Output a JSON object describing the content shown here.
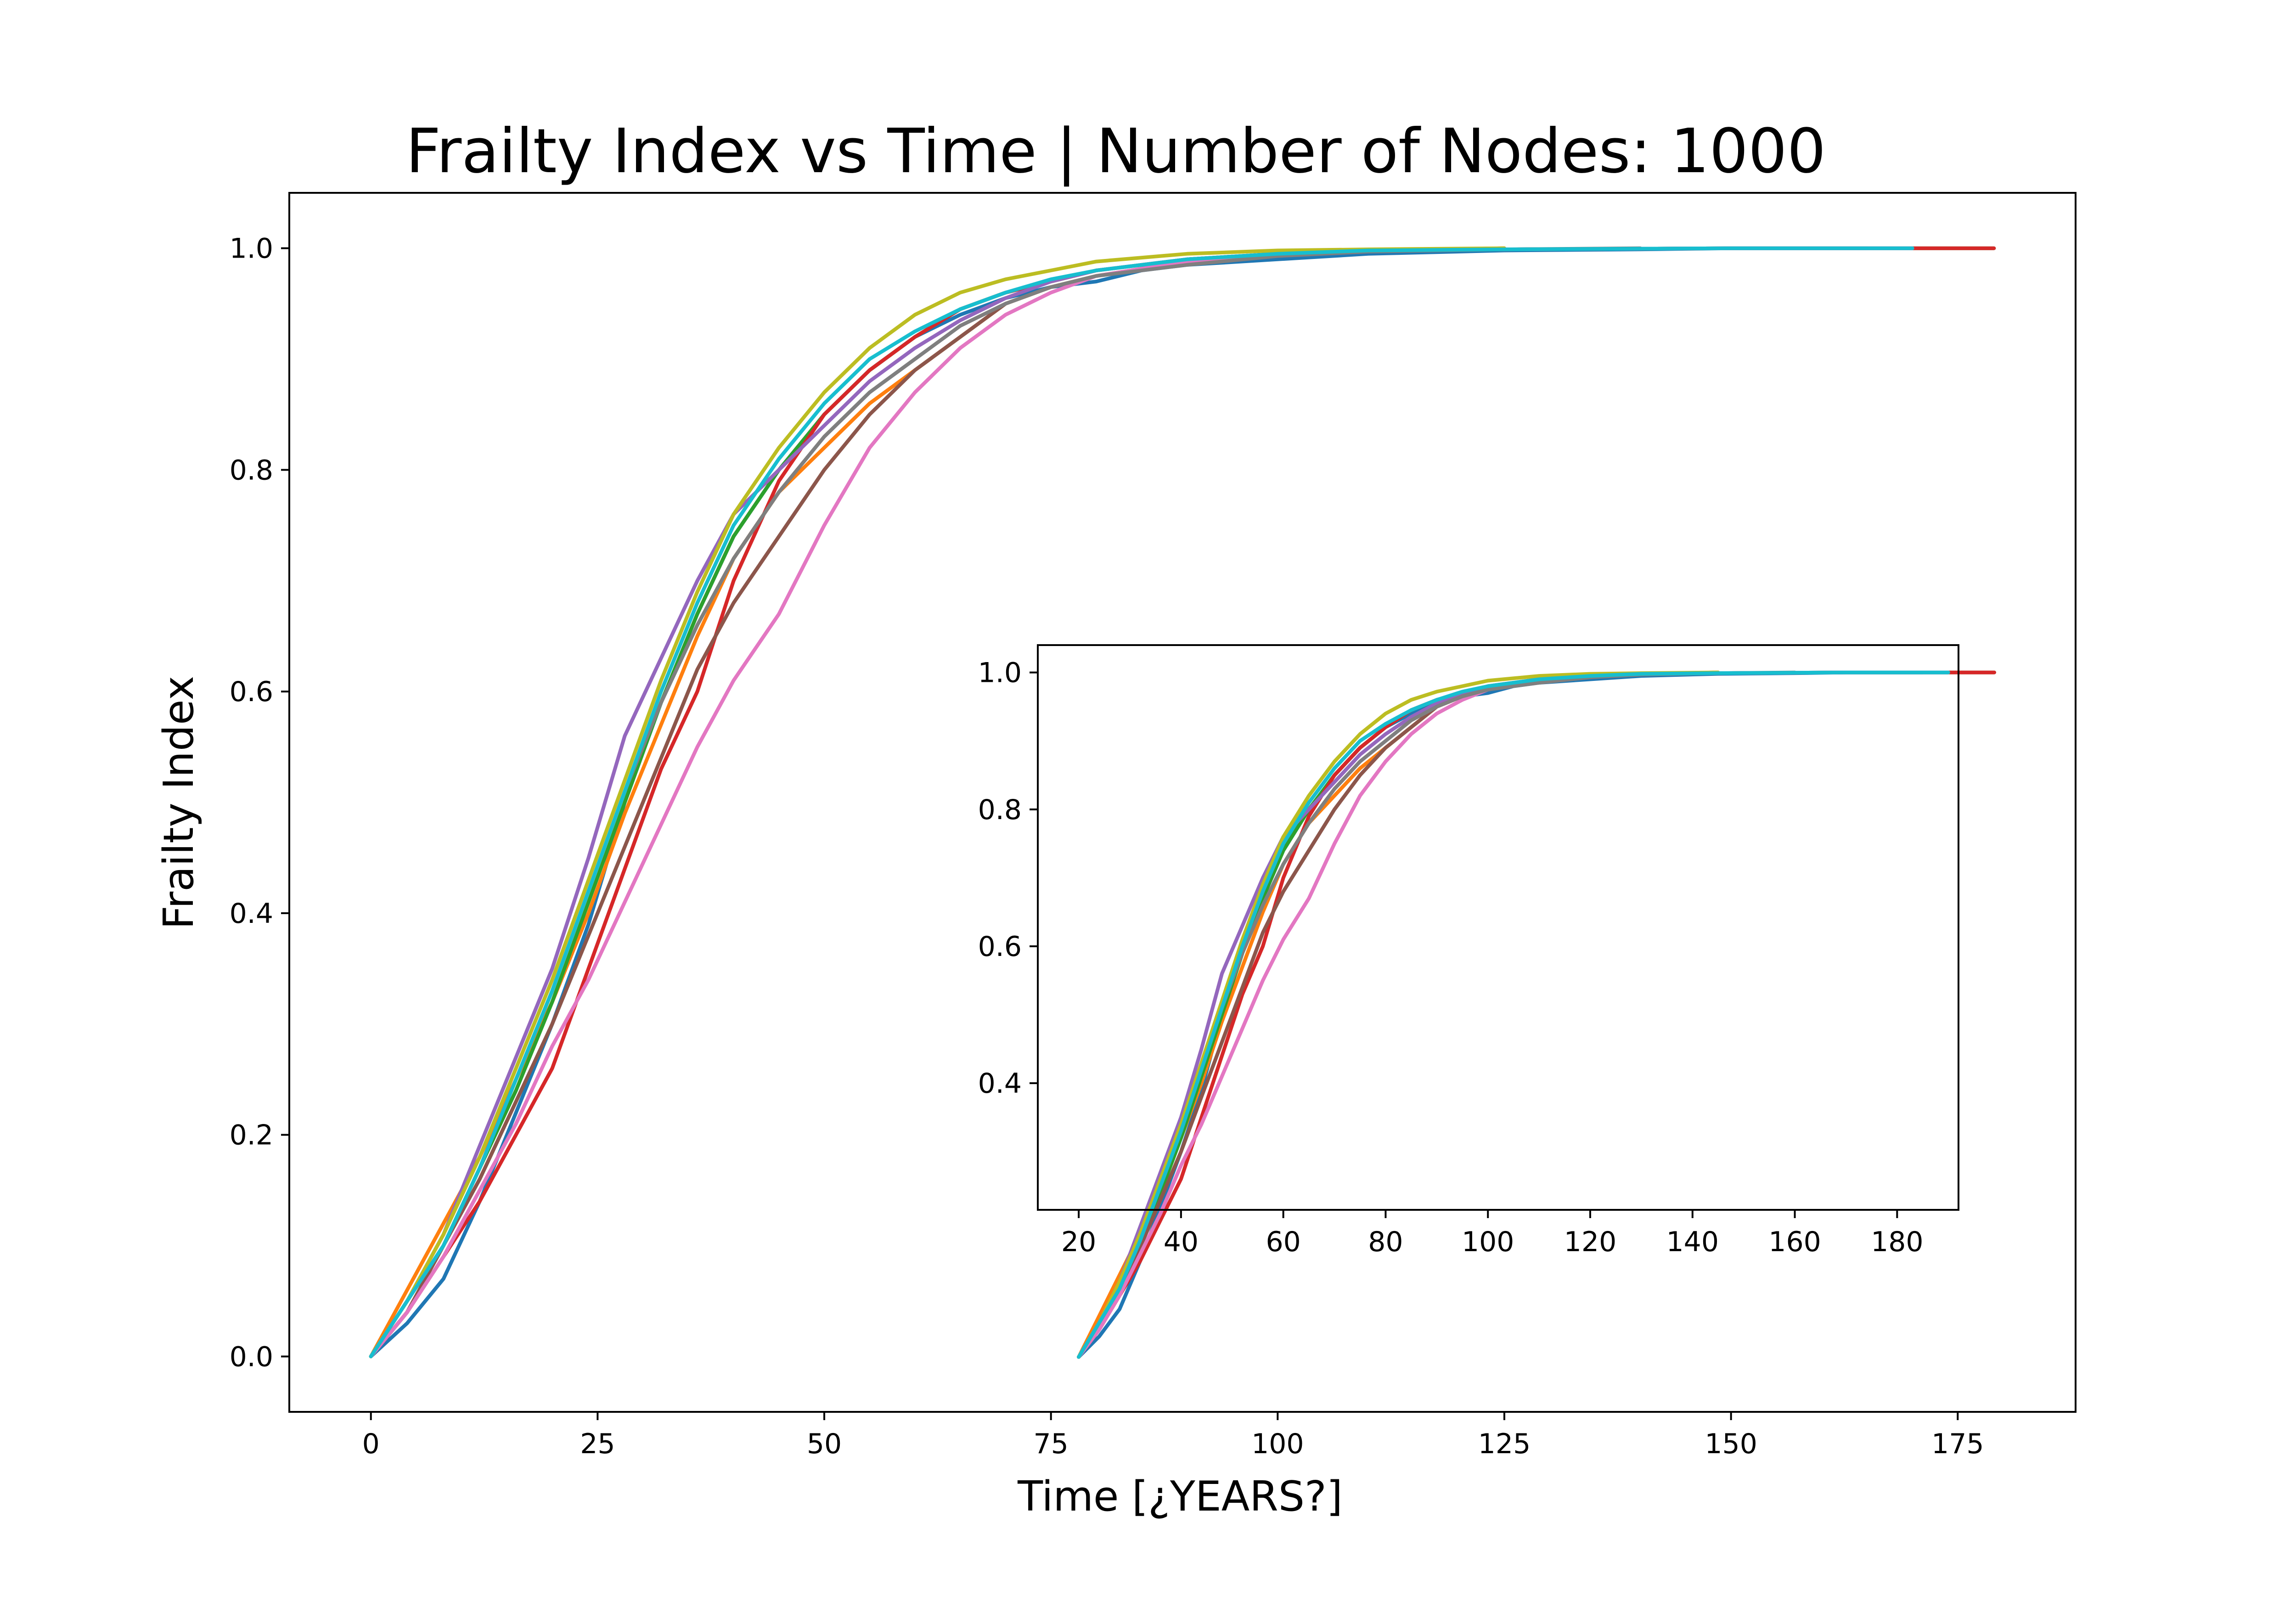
{
  "chart_data": {
    "type": "line",
    "title": "Frailty Index vs Time | Number of Nodes: 1000",
    "xlabel": "Time [¿YEARS?]",
    "ylabel": "Frailty Index",
    "xlim": [
      -9,
      188
    ],
    "ylim": [
      -0.05,
      1.05
    ],
    "xticks": [
      0,
      25,
      50,
      75,
      100,
      125,
      150,
      175
    ],
    "xtick_labels": [
      "0",
      "25",
      "50",
      "75",
      "100",
      "125",
      "150",
      "175"
    ],
    "yticks": [
      0.0,
      0.2,
      0.4,
      0.6,
      0.8,
      1.0
    ],
    "ytick_labels": [
      "0.0",
      "0.2",
      "0.4",
      "0.6",
      "0.8",
      "1.0"
    ],
    "grid": false,
    "legend": "none",
    "color_cycle": [
      "#1f77b4",
      "#ff7f0e",
      "#2ca02c",
      "#d62728",
      "#9467bd",
      "#8c564b",
      "#e377c2",
      "#7f7f7f",
      "#bcbd22",
      "#17becf"
    ],
    "series": [
      {
        "color": "#1f77b4",
        "x": [
          0,
          4,
          8,
          12,
          16,
          20,
          24,
          28,
          32,
          36,
          40,
          45,
          50,
          55,
          60,
          65,
          70,
          75,
          80,
          85,
          90,
          100,
          110,
          125,
          140,
          150,
          160,
          165
        ],
        "values": [
          0.0,
          0.03,
          0.07,
          0.14,
          0.22,
          0.3,
          0.39,
          0.5,
          0.59,
          0.67,
          0.74,
          0.8,
          0.85,
          0.89,
          0.92,
          0.94,
          0.955,
          0.965,
          0.97,
          0.98,
          0.985,
          0.99,
          0.995,
          0.998,
          0.999,
          1.0,
          1.0,
          1.0
        ]
      },
      {
        "color": "#ff7f0e",
        "x": [
          0,
          4,
          8,
          12,
          16,
          20,
          24,
          28,
          32,
          36,
          40,
          45,
          50,
          55,
          60,
          65,
          70,
          75,
          80,
          90,
          100,
          110,
          125
        ],
        "values": [
          0.0,
          0.06,
          0.12,
          0.18,
          0.25,
          0.32,
          0.4,
          0.49,
          0.57,
          0.65,
          0.72,
          0.78,
          0.82,
          0.86,
          0.89,
          0.92,
          0.95,
          0.965,
          0.975,
          0.988,
          0.995,
          0.998,
          1.0
        ]
      },
      {
        "color": "#2ca02c",
        "x": [
          0,
          4,
          8,
          12,
          16,
          20,
          24,
          28,
          32,
          36,
          40,
          45,
          50,
          55,
          60,
          65,
          70,
          75,
          80,
          90,
          100,
          110,
          125,
          150,
          170,
          179
        ],
        "values": [
          0.0,
          0.04,
          0.1,
          0.17,
          0.24,
          0.32,
          0.41,
          0.5,
          0.59,
          0.67,
          0.74,
          0.8,
          0.85,
          0.89,
          0.92,
          0.945,
          0.96,
          0.97,
          0.98,
          0.99,
          0.995,
          0.998,
          0.999,
          1.0,
          1.0,
          1.0
        ]
      },
      {
        "color": "#d62728",
        "x": [
          0,
          4,
          8,
          12,
          16,
          20,
          24,
          28,
          32,
          36,
          40,
          45,
          50,
          55,
          60,
          65,
          70,
          75,
          80,
          90,
          100,
          110,
          125,
          150,
          179
        ],
        "values": [
          0.0,
          0.04,
          0.09,
          0.14,
          0.2,
          0.26,
          0.35,
          0.44,
          0.53,
          0.6,
          0.7,
          0.79,
          0.85,
          0.89,
          0.92,
          0.945,
          0.96,
          0.97,
          0.98,
          0.99,
          0.995,
          0.998,
          0.999,
          1.0,
          1.0
        ]
      },
      {
        "color": "#9467bd",
        "x": [
          0,
          4,
          8,
          12,
          16,
          20,
          24,
          28,
          32,
          36,
          40,
          45,
          50,
          55,
          60,
          65,
          70,
          75,
          80,
          90,
          100,
          110,
          125,
          150,
          170
        ],
        "values": [
          0.0,
          0.05,
          0.11,
          0.19,
          0.27,
          0.35,
          0.45,
          0.56,
          0.63,
          0.7,
          0.76,
          0.8,
          0.84,
          0.88,
          0.91,
          0.935,
          0.955,
          0.97,
          0.98,
          0.99,
          0.995,
          0.998,
          0.999,
          1.0,
          1.0
        ]
      },
      {
        "color": "#8c564b",
        "x": [
          0,
          4,
          8,
          12,
          16,
          20,
          24,
          28,
          32,
          36,
          40,
          45,
          50,
          55,
          60,
          65,
          70,
          75,
          80,
          90,
          100,
          110,
          125
        ],
        "values": [
          0.0,
          0.04,
          0.1,
          0.16,
          0.23,
          0.3,
          0.38,
          0.46,
          0.54,
          0.62,
          0.68,
          0.74,
          0.8,
          0.85,
          0.89,
          0.92,
          0.95,
          0.965,
          0.975,
          0.988,
          0.995,
          0.998,
          1.0
        ]
      },
      {
        "color": "#e377c2",
        "x": [
          0,
          4,
          8,
          12,
          16,
          20,
          24,
          28,
          32,
          36,
          40,
          45,
          50,
          55,
          60,
          65,
          70,
          75,
          80,
          90,
          100,
          110,
          125,
          150,
          170
        ],
        "values": [
          0.0,
          0.04,
          0.09,
          0.15,
          0.21,
          0.28,
          0.34,
          0.41,
          0.48,
          0.55,
          0.61,
          0.67,
          0.75,
          0.82,
          0.87,
          0.91,
          0.94,
          0.96,
          0.975,
          0.988,
          0.995,
          0.998,
          0.999,
          1.0,
          1.0
        ]
      },
      {
        "color": "#7f7f7f",
        "x": [
          0,
          4,
          8,
          12,
          16,
          20,
          24,
          28,
          32,
          36,
          40,
          45,
          50,
          55,
          60,
          65,
          70,
          75,
          80,
          90,
          100,
          110,
          125,
          140
        ],
        "values": [
          0.0,
          0.05,
          0.1,
          0.17,
          0.25,
          0.33,
          0.42,
          0.51,
          0.59,
          0.66,
          0.72,
          0.78,
          0.83,
          0.87,
          0.9,
          0.93,
          0.95,
          0.965,
          0.975,
          0.985,
          0.993,
          0.997,
          0.999,
          1.0
        ]
      },
      {
        "color": "#bcbd22",
        "x": [
          0,
          4,
          8,
          12,
          16,
          20,
          24,
          28,
          32,
          36,
          40,
          45,
          50,
          55,
          60,
          65,
          70,
          75,
          80,
          90,
          100,
          110,
          125
        ],
        "values": [
          0.0,
          0.05,
          0.11,
          0.18,
          0.26,
          0.34,
          0.43,
          0.52,
          0.61,
          0.69,
          0.76,
          0.82,
          0.87,
          0.91,
          0.94,
          0.96,
          0.972,
          0.98,
          0.988,
          0.995,
          0.998,
          0.999,
          1.0
        ]
      },
      {
        "color": "#17becf",
        "x": [
          0,
          4,
          8,
          12,
          16,
          20,
          24,
          28,
          32,
          36,
          40,
          45,
          50,
          55,
          60,
          65,
          70,
          75,
          80,
          90,
          100,
          110,
          125,
          150,
          170
        ],
        "values": [
          0.0,
          0.05,
          0.1,
          0.17,
          0.25,
          0.33,
          0.42,
          0.51,
          0.6,
          0.68,
          0.75,
          0.81,
          0.86,
          0.9,
          0.925,
          0.945,
          0.96,
          0.972,
          0.98,
          0.99,
          0.995,
          0.998,
          0.999,
          1.0,
          1.0
        ]
      }
    ],
    "inset": {
      "type": "line",
      "xlim": [
        12,
        192
      ],
      "ylim": [
        0.215,
        1.04
      ],
      "xticks": [
        20,
        40,
        60,
        80,
        100,
        120,
        140,
        160,
        180
      ],
      "xtick_labels": [
        "20",
        "40",
        "60",
        "80",
        "100",
        "120",
        "140",
        "160",
        "180"
      ],
      "yticks": [
        0.4,
        0.6,
        0.8,
        1.0
      ],
      "ytick_labels": [
        "0.4",
        "0.6",
        "0.8",
        "1.0"
      ],
      "x_offset": 20,
      "description": "zoom of the main series for x >= 20, shifted by +20 on the x axis"
    }
  }
}
